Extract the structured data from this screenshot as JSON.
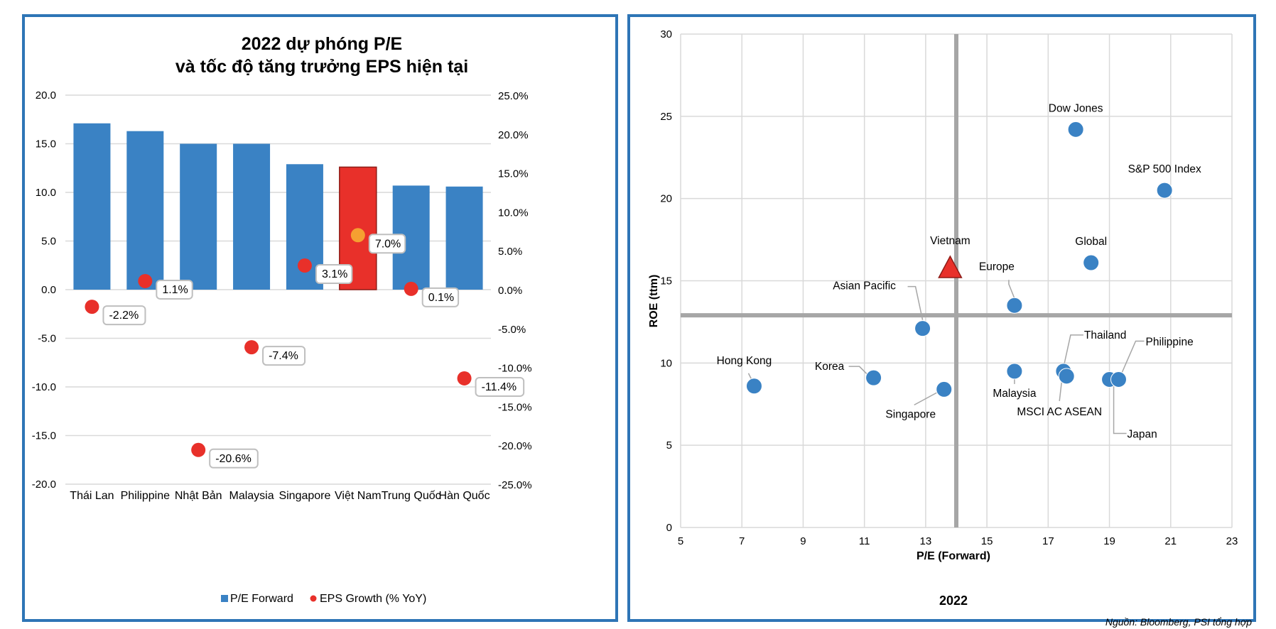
{
  "chart_data": [
    {
      "type": "bar",
      "title": "2022 dự phóng P/E",
      "subtitle": "và tốc độ tăng trưởng EPS hiện tại",
      "categories": [
        "Thái Lan",
        "Philippine",
        "Nhật Bản",
        "Malaysia",
        "Singapore",
        "Việt Nam",
        "Trung Quốc",
        "Hàn Quốc"
      ],
      "series": [
        {
          "name": "P/E Forward",
          "axis": "left",
          "kind": "bar",
          "values": [
            17.1,
            16.3,
            15.0,
            15.0,
            12.9,
            12.6,
            10.7,
            10.6
          ],
          "color": "#3a82c4",
          "highlight_index": 5,
          "highlight_color": "#e8302a"
        },
        {
          "name": "EPS Growth (% YoY)",
          "axis": "right",
          "kind": "scatter",
          "values": [
            -2.2,
            1.1,
            -20.6,
            -7.4,
            3.1,
            7.0,
            0.1,
            -11.4
          ],
          "labels": [
            "-2.2%",
            "1.1%",
            "-20.6%",
            "-7.4%",
            "3.1%",
            "7.0%",
            "0.1%",
            "-11.4%"
          ],
          "color": "#e8302a",
          "highlight_index": 5,
          "highlight_color": "#f5a031"
        }
      ],
      "ylim_left": [
        -20,
        20
      ],
      "yticks_left": [
        "20.0",
        "15.0",
        "10.0",
        "5.0",
        "0.0",
        "-5.0",
        "-10.0",
        "-15.0",
        "-20.0"
      ],
      "ylim_right": [
        -25,
        25
      ],
      "yticks_right": [
        "25.0%",
        "20.0%",
        "15.0%",
        "10.0%",
        "5.0%",
        "0.0%",
        "-5.0%",
        "-10.0%",
        "-15.0%",
        "-20.0%",
        "-25.0%"
      ],
      "grid": true,
      "legend_position": "bottom"
    },
    {
      "type": "scatter",
      "title": "2022",
      "xlabel": "P/E (Forward)",
      "ylabel": "ROE (ttm)",
      "xlim": [
        5,
        23
      ],
      "ylim": [
        0,
        30
      ],
      "xticks": [
        5,
        7,
        9,
        11,
        13,
        15,
        17,
        19,
        21,
        23
      ],
      "yticks": [
        0,
        5,
        10,
        15,
        20,
        25,
        30
      ],
      "reference_lines": {
        "x": 14.0,
        "y": 12.9
      },
      "point_color": "#3a82c4",
      "highlight_color": "#e8302a",
      "points": [
        {
          "label": "Dow Jones",
          "x": 17.9,
          "y": 24.2
        },
        {
          "label": "S&P 500 Index",
          "x": 20.8,
          "y": 20.5
        },
        {
          "label": "Global",
          "x": 18.4,
          "y": 16.1
        },
        {
          "label": "Vietnam",
          "x": 13.8,
          "y": 15.8,
          "marker": "triangle"
        },
        {
          "label": "Europe",
          "x": 15.9,
          "y": 13.5
        },
        {
          "label": "Asian Pacific",
          "x": 12.9,
          "y": 12.1
        },
        {
          "label": "Hong Kong",
          "x": 7.4,
          "y": 8.6
        },
        {
          "label": "Korea",
          "x": 11.3,
          "y": 9.1
        },
        {
          "label": "Singapore",
          "x": 13.6,
          "y": 8.4
        },
        {
          "label": "Malaysia",
          "x": 15.9,
          "y": 9.5
        },
        {
          "label": "Thailand",
          "x": 17.5,
          "y": 9.5
        },
        {
          "label": "MSCI AC ASEAN",
          "x": 17.6,
          "y": 9.2
        },
        {
          "label": "Japan",
          "x": 19.0,
          "y": 9.0
        },
        {
          "label": "Philippine",
          "x": 19.3,
          "y": 9.0
        }
      ]
    }
  ],
  "source_note": "Nguồn: Bloomberg, PSI tổng hợp"
}
